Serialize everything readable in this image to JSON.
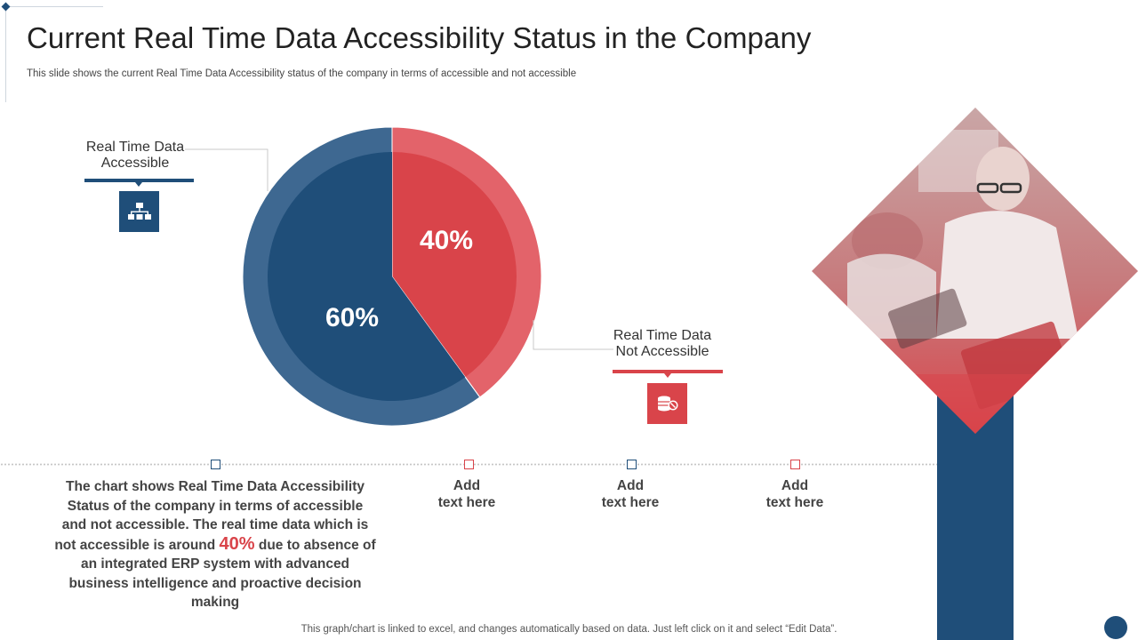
{
  "slide": {
    "title": "Current Real Time Data Accessibility Status in the Company",
    "subtitle": "This slide shows the current Real Time Data Accessibility status of the company in terms of accessible and not accessible",
    "footer": "This graph/chart is linked to excel,  and changes automatically based on data. Just left click on it and select “Edit Data”."
  },
  "chart_data": {
    "type": "pie",
    "categories": [
      "Real Time Data Accessible",
      "Real Time Data Not Accessible"
    ],
    "values": [
      60,
      40
    ],
    "value_labels": [
      "60%",
      "40%"
    ],
    "colors": [
      "#1f4e79",
      "#d9444a"
    ]
  },
  "legend": {
    "accessible": {
      "line1": "Real Time Data",
      "line2": "Accessible",
      "icon": "network-hierarchy-icon",
      "color": "#1f4e79"
    },
    "not_accessible": {
      "line1": "Real Time Data",
      "line2": "Not Accessible",
      "icon": "database-block-icon",
      "color": "#d9444a"
    }
  },
  "description": {
    "part1": "The chart shows Real Time Data Accessibility Status of the company in terms of accessible and not accessible. The real time data which is not accessible is around ",
    "highlight": "40%",
    "part2": " due to absence of an integrated ERP system with advanced business intelligence and proactive decision making"
  },
  "placeholders": [
    {
      "line1": "Add",
      "line2": "text here"
    },
    {
      "line1": "Add",
      "line2": "text here"
    },
    {
      "line1": "Add",
      "line2": "text here"
    }
  ]
}
